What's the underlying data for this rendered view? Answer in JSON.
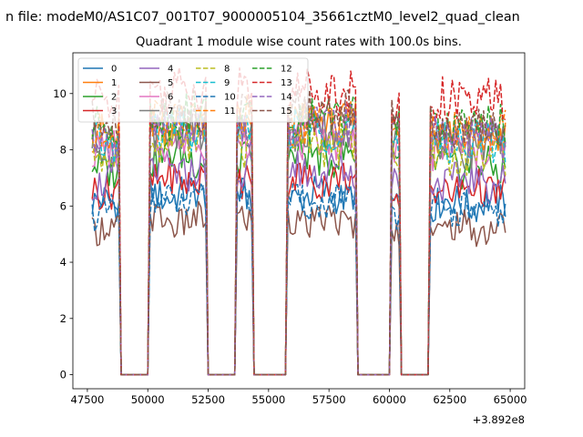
{
  "chart_data": {
    "type": "line",
    "suptitle": "n file: modeM0/AS1C07_001T07_9000005104_35661cztM0_level2_quad_clean",
    "title": "Quadrant 1 module wise count rates with 100.0s bins.",
    "xlabel": "",
    "ylabel": "",
    "x_offset_label": "+3.892e8",
    "xlim": [
      46900,
      65600
    ],
    "ylim": [
      -0.5,
      11.45
    ],
    "x_ticks": [
      47500,
      50000,
      52500,
      55000,
      57500,
      60000,
      62500,
      65000
    ],
    "y_ticks": [
      0,
      2,
      4,
      6,
      8,
      10
    ],
    "legend_position": "upper-left",
    "legend_columns": 4,
    "x_range_data": [
      47700,
      64800
    ],
    "bin_width_s": 100,
    "segments": [
      {
        "start": 47700,
        "end": 48800,
        "level": 1.0
      },
      {
        "start": 50100,
        "end": 52400,
        "level": 1.05
      },
      {
        "start": 53700,
        "end": 54300,
        "level": 1.05
      },
      {
        "start": 55800,
        "end": 58600,
        "level": 1.05
      },
      {
        "start": 60100,
        "end": 60400,
        "level": 1.0
      },
      {
        "start": 61700,
        "end": 64800,
        "level": 1.0
      }
    ],
    "series": [
      {
        "name": "0",
        "color": "#1f77b4",
        "style": "solid",
        "base": 6.1
      },
      {
        "name": "1",
        "color": "#ff7f0e",
        "style": "solid",
        "base": 8.5
      },
      {
        "name": "2",
        "color": "#2ca02c",
        "style": "solid",
        "base": 7.4
      },
      {
        "name": "3",
        "color": "#d62728",
        "style": "solid",
        "base": 6.6
      },
      {
        "name": "4",
        "color": "#9467bd",
        "style": "solid",
        "base": 6.9
      },
      {
        "name": "5",
        "color": "#8c564b",
        "style": "solid",
        "base": 5.2
      },
      {
        "name": "6",
        "color": "#e377c2",
        "style": "solid",
        "base": 8.0
      },
      {
        "name": "7",
        "color": "#7f7f7f",
        "style": "solid",
        "base": 8.2
      },
      {
        "name": "8",
        "color": "#bcbd22",
        "style": "dashed",
        "base": 7.8
      },
      {
        "name": "9",
        "color": "#17becf",
        "style": "dashed",
        "base": 8.3
      },
      {
        "name": "10",
        "color": "#1f77b4",
        "style": "dashed",
        "base": 5.8
      },
      {
        "name": "11",
        "color": "#ff7f0e",
        "style": "dashed",
        "base": 8.6
      },
      {
        "name": "12",
        "color": "#2ca02c",
        "style": "dashed",
        "base": 8.8
      },
      {
        "name": "13",
        "color": "#d62728",
        "style": "dashed",
        "base": 9.7
      },
      {
        "name": "14",
        "color": "#9467bd",
        "style": "dashed",
        "base": 8.4
      },
      {
        "name": "15",
        "color": "#8c564b",
        "style": "dashed",
        "base": 8.9
      }
    ]
  }
}
